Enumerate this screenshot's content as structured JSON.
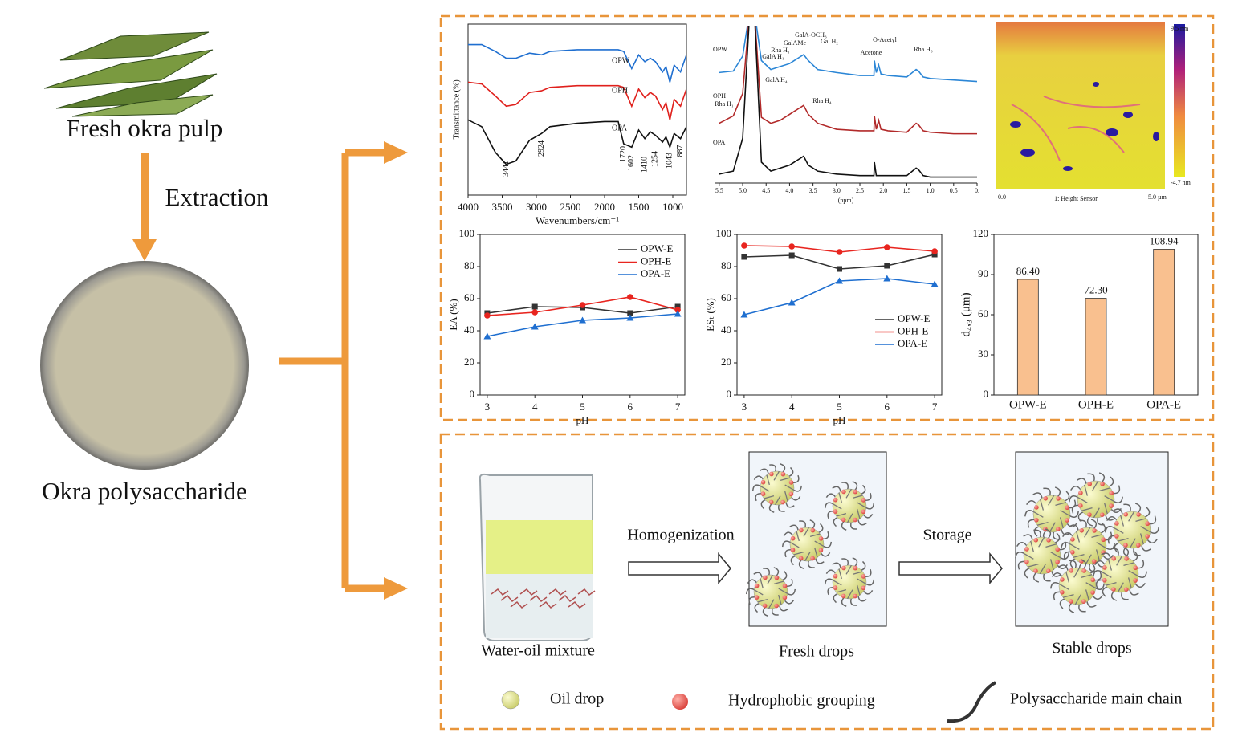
{
  "labels": {
    "fresh_okra_pulp": "Fresh okra pulp",
    "extraction": "Extraction",
    "okra_polysaccharide": "Okra polysaccharide",
    "homogenization": "Homogenization",
    "storage": "Storage",
    "water_oil_mixture": "Water-oil mixture",
    "fresh_drops": "Fresh drops",
    "stable_drops": "Stable drops"
  },
  "legend": {
    "oil_drop": "Oil drop",
    "hydrophobic_grouping": "Hydrophobic grouping",
    "polysaccharide_main_chain": "Polysaccharide main chain"
  },
  "afm": {
    "colorbar_max": "9.5 nm",
    "colorbar_min": "-4.7 nm",
    "x_start": "0.0",
    "x_end": "5.0 µm",
    "channel": "1: Height Sensor"
  },
  "chart_data": [
    {
      "type": "line",
      "xlabel": "Wavenumbers/cm⁻¹",
      "ylabel": "Transmittance (%)",
      "x": [
        4000,
        3800,
        3600,
        3441,
        3300,
        3100,
        2924,
        2800,
        2400,
        2000,
        1800,
        1720,
        1602,
        1500,
        1410,
        1330,
        1254,
        1150,
        1100,
        1043,
        980,
        887,
        800
      ],
      "xlim": [
        4000,
        800
      ],
      "xticks": [
        4000,
        3500,
        3000,
        2500,
        2000,
        1500,
        1000
      ],
      "ylim": [
        0,
        100
      ],
      "series": [
        {
          "name": "OPW",
          "color": "#1f6fd0",
          "values": [
            88,
            88,
            84,
            80,
            80,
            83,
            82,
            84,
            85,
            85,
            85,
            84,
            74,
            82,
            78,
            80,
            78,
            72,
            75,
            66,
            76,
            72,
            82
          ]
        },
        {
          "name": "OPH",
          "color": "#e0201c",
          "values": [
            66,
            65,
            58,
            52,
            53,
            60,
            61,
            63,
            64,
            64,
            64,
            63,
            52,
            62,
            57,
            60,
            58,
            50,
            54,
            44,
            56,
            52,
            62
          ]
        },
        {
          "name": "OPA",
          "color": "#111111",
          "values": [
            44,
            40,
            25,
            18,
            20,
            32,
            36,
            40,
            42,
            43,
            43,
            30,
            28,
            38,
            33,
            37,
            35,
            31,
            34,
            28,
            36,
            33,
            40
          ]
        }
      ],
      "annotations": [
        3441,
        2924,
        1720,
        1602,
        1410,
        1254,
        1043,
        887
      ]
    },
    {
      "type": "line",
      "xlabel": "(ppm)",
      "x": [
        5.5,
        5.2,
        5.0,
        4.85,
        4.75,
        4.6,
        4.4,
        4.2,
        4.0,
        3.9,
        3.8,
        3.7,
        3.6,
        3.4,
        3.0,
        2.5,
        2.2,
        2.19,
        2.15,
        2.1,
        2.05,
        1.9,
        1.5,
        1.3,
        1.25,
        1.15,
        1.0,
        0.5,
        0.0
      ],
      "xlim": [
        5.6,
        0
      ],
      "xticks": [
        5.5,
        {
          "value": 5,
          "label": "5.0"
        },
        4.5,
        {
          "value": 4,
          "label": "4.0"
        },
        3.5,
        {
          "value": 3,
          "label": "3.0"
        },
        2.5,
        {
          "value": 2,
          "label": "2.0"
        },
        1.5,
        {
          "value": 1,
          "label": "1.0"
        },
        0.5,
        {
          "value": 0,
          "label": "0."
        }
      ],
      "ylim": [
        0,
        100
      ],
      "series": [
        {
          "name": "OPW",
          "color": "#2b86d6",
          "values": [
            74,
            75,
            85,
            115,
            115,
            82,
            76,
            78,
            80,
            82,
            84,
            86,
            82,
            76,
            74,
            72,
            72,
            82,
            74,
            79,
            73,
            72,
            71,
            76,
            75,
            71,
            70,
            69,
            68
          ]
        },
        {
          "name": "OPH",
          "color": "#b22a2a",
          "values": [
            40,
            45,
            60,
            115,
            115,
            44,
            40,
            42,
            46,
            48,
            50,
            52,
            46,
            40,
            36,
            35,
            35,
            45,
            36,
            42,
            36,
            35,
            34,
            40,
            39,
            35,
            34,
            33,
            33
          ]
        },
        {
          "name": "OPA",
          "color": "#111111",
          "values": [
            6,
            8,
            30,
            115,
            115,
            14,
            8,
            10,
            12,
            14,
            16,
            18,
            12,
            8,
            6,
            5,
            5,
            14,
            5,
            5,
            5,
            5,
            5,
            10,
            9,
            5,
            4,
            4,
            4
          ]
        }
      ],
      "annotations": [
        "GalA-OCH₃",
        "GalAMe",
        "Gal H₂",
        "Rha H₁",
        "GalA H₁",
        "Acetone",
        "O-Acetyl",
        "Rha H₆",
        "GalA H₄",
        "Rha H₁",
        "Rha H₄"
      ]
    },
    {
      "type": "line",
      "xlabel": "pH",
      "ylabel": "EA (%)",
      "x": [
        3,
        4,
        5,
        6,
        7
      ],
      "xlim": [
        2.85,
        7.15
      ],
      "xticks": [
        3,
        4,
        5,
        6,
        7
      ],
      "ylim": [
        0,
        100
      ],
      "yticks": [
        0,
        20,
        40,
        60,
        80,
        100
      ],
      "legend": "upper right",
      "series": [
        {
          "name": "OPW-E",
          "color": "#333333",
          "marker": "square",
          "values": [
            51,
            55,
            54.5,
            51,
            55
          ]
        },
        {
          "name": "OPH-E",
          "color": "#e8251f",
          "marker": "circle",
          "values": [
            49.5,
            51.5,
            56,
            61,
            53
          ]
        },
        {
          "name": "OPA-E",
          "color": "#1f6fd0",
          "marker": "triangle",
          "values": [
            36.5,
            42.5,
            46.5,
            48,
            50.5
          ]
        }
      ]
    },
    {
      "type": "line",
      "xlabel": "pH",
      "ylabel": "ESₜ (%)",
      "x": [
        3,
        4,
        5,
        6,
        7
      ],
      "xlim": [
        2.85,
        7.15
      ],
      "xticks": [
        3,
        4,
        5,
        6,
        7
      ],
      "ylim": [
        0,
        100
      ],
      "yticks": [
        0,
        20,
        40,
        60,
        80,
        100
      ],
      "legend": "center right",
      "series": [
        {
          "name": "OPW-E",
          "color": "#333333",
          "marker": "square",
          "values": [
            86,
            87,
            78.5,
            80.5,
            87.5
          ]
        },
        {
          "name": "OPH-E",
          "color": "#e8251f",
          "marker": "circle",
          "values": [
            93,
            92.5,
            89,
            92,
            89.5
          ]
        },
        {
          "name": "OPA-E",
          "color": "#1f6fd0",
          "marker": "triangle",
          "values": [
            50,
            57.5,
            71,
            72.5,
            69
          ]
        }
      ]
    },
    {
      "type": "bar",
      "ylabel": "d₄,₃ (μm)",
      "categories": [
        "OPW-E",
        "OPH-E",
        "OPA-E"
      ],
      "values": [
        86.4,
        72.3,
        108.94
      ],
      "value_labels": [
        "86.40",
        "72.30",
        "108.94"
      ],
      "color": "#f9c08f",
      "ylim": [
        0,
        120
      ],
      "yticks": [
        0,
        30,
        60,
        90,
        120
      ]
    }
  ]
}
